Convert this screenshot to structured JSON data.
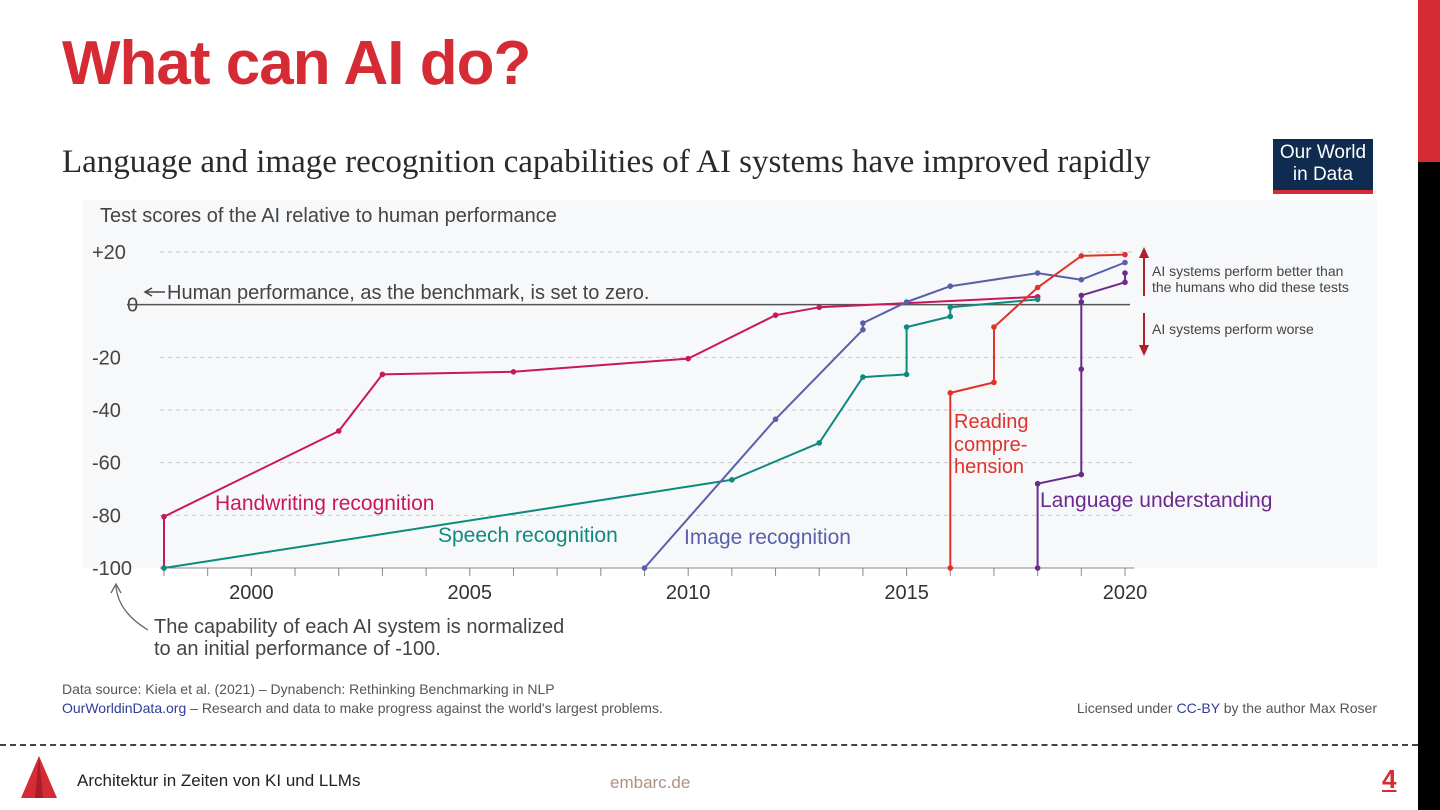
{
  "slide": {
    "title": "What can AI do?",
    "footer_title": "Architektur in Zeiten von KI und LLMs",
    "footer_site": "embarc.de",
    "page_number": "4",
    "accent_color": "#d42b35"
  },
  "logo": {
    "line1": "Our World",
    "line2": "in Data"
  },
  "sources": {
    "data_source": "Data source: Kiela et al. (2021) – Dynabench: Rethinking Benchmarking in NLP",
    "owid_link": "OurWorldinData.org",
    "owid_text": " – Research and data to make progress against the world's largest problems.",
    "license_prefix": "Licensed under ",
    "license_link": "CC-BY",
    "license_suffix": " by the author Max Roser"
  },
  "chart_data": {
    "type": "line",
    "title": "Language and image recognition capabilities of AI systems have improved rapidly",
    "ylabel": "Test scores of the AI relative to human performance",
    "ylim": [
      -100,
      20
    ],
    "xlim": [
      1998,
      2020
    ],
    "x_ticks": [
      "2000",
      "2005",
      "2010",
      "2015",
      "2020"
    ],
    "y_ticks": [
      "+20",
      "0",
      "-20",
      "-40",
      "-60",
      "-80",
      "-100"
    ],
    "grid": true,
    "annotations": {
      "benchmark": "Human performance, as the benchmark, is set to zero.",
      "normalized_1": "The capability of each AI system is normalized",
      "normalized_2": "to an initial performance of -100.",
      "better_1": "AI systems perform better than",
      "better_2": "the humans who did these tests",
      "worse": "AI systems perform worse"
    },
    "series": [
      {
        "name": "Handwriting recognition",
        "color": "#c8175d",
        "points": [
          [
            1998,
            -100
          ],
          [
            1998,
            -80.5
          ],
          [
            2002,
            -48
          ],
          [
            2003,
            -26.5
          ],
          [
            2006,
            -25.5
          ],
          [
            2010,
            -20.5
          ],
          [
            2012,
            -4
          ],
          [
            2013,
            -1
          ],
          [
            2018,
            3
          ]
        ]
      },
      {
        "name": "Speech recognition",
        "color": "#0f8a7e",
        "points": [
          [
            1998,
            -100
          ],
          [
            2011,
            -66.5
          ],
          [
            2013,
            -52.5
          ],
          [
            2014,
            -27.5
          ],
          [
            2015,
            -26.5
          ],
          [
            2015,
            -8.5
          ],
          [
            2016,
            -4.5
          ],
          [
            2016,
            -1
          ],
          [
            2018,
            2
          ]
        ]
      },
      {
        "name": "Image recognition",
        "color": "#5a5fac",
        "points": [
          [
            2009,
            -100
          ],
          [
            2012,
            -43.5
          ],
          [
            2014,
            -9.5
          ],
          [
            2014,
            -7
          ],
          [
            2015,
            1
          ],
          [
            2016,
            7
          ],
          [
            2018,
            12
          ],
          [
            2019,
            9.5
          ],
          [
            2020,
            16
          ]
        ]
      },
      {
        "name_lines": [
          "Reading",
          "compre-",
          "hension"
        ],
        "color": "#e0322a",
        "points": [
          [
            2016,
            -100
          ],
          [
            2016,
            -33.5
          ],
          [
            2017,
            -29.5
          ],
          [
            2017,
            -8.5
          ],
          [
            2018,
            6.5
          ],
          [
            2019,
            18.5
          ],
          [
            2020,
            19
          ]
        ]
      },
      {
        "name": "Language understanding",
        "color": "#6b2b8e",
        "points": [
          [
            2018,
            -100
          ],
          [
            2018,
            -68
          ],
          [
            2019,
            -64.5
          ],
          [
            2019,
            -24.5
          ],
          [
            2019,
            1
          ],
          [
            2019,
            3.5
          ],
          [
            2020,
            8.5
          ],
          [
            2020,
            12
          ]
        ]
      }
    ]
  }
}
